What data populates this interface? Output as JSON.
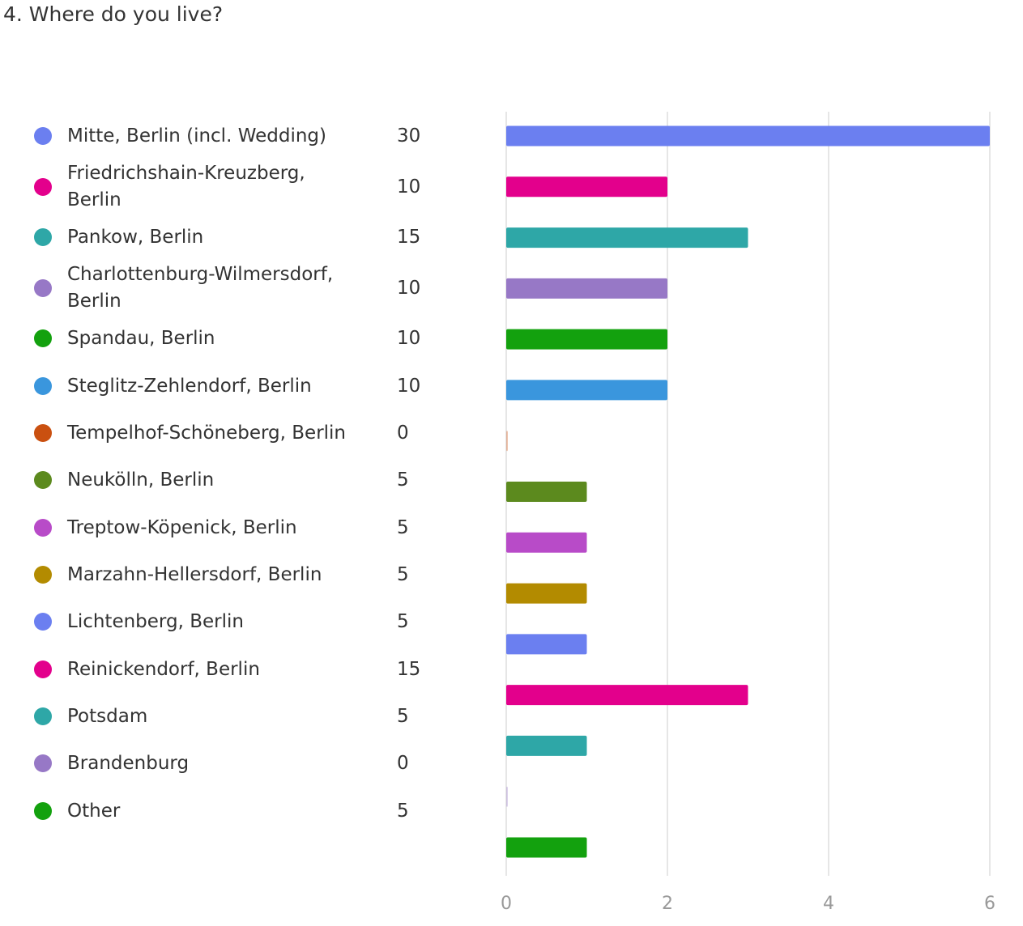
{
  "title": "4. Where do you live?",
  "chart_data": {
    "type": "bar",
    "orientation": "horizontal",
    "title": "4. Where do you live?",
    "xlim": [
      0,
      6
    ],
    "x_ticks": [
      0,
      2,
      4,
      6
    ],
    "grid": "vertical",
    "legend_position": "left",
    "items": [
      {
        "label": "Mitte, Berlin (incl. Wedding)",
        "count": "30",
        "value": 6,
        "color": "#6b7ff0"
      },
      {
        "label": "Friedrichshain-Kreuzberg, Berlin",
        "count": "10",
        "value": 2,
        "color": "#e3008c"
      },
      {
        "label": "Pankow, Berlin",
        "count": "15",
        "value": 3,
        "color": "#2ea7a7"
      },
      {
        "label": "Charlottenburg-Wilmersdorf, Berlin",
        "count": "10",
        "value": 2,
        "color": "#9778c6"
      },
      {
        "label": "Spandau, Berlin",
        "count": "10",
        "value": 2,
        "color": "#13a10e"
      },
      {
        "label": "Steglitz-Zehlendorf, Berlin",
        "count": "10",
        "value": 2,
        "color": "#3a96dd"
      },
      {
        "label": "Tempelhof-Schöneberg, Berlin",
        "count": "0",
        "value": 0,
        "color": "#ca5010"
      },
      {
        "label": "Neukölln, Berlin",
        "count": "5",
        "value": 1,
        "color": "#5c8a1e"
      },
      {
        "label": "Treptow-Köpenick, Berlin",
        "count": "5",
        "value": 1,
        "color": "#b84bc8"
      },
      {
        "label": "Marzahn-Hellersdorf, Berlin",
        "count": "5",
        "value": 1,
        "color": "#b38b00"
      },
      {
        "label": "Lichtenberg, Berlin",
        "count": "5",
        "value": 1,
        "color": "#6b7ff0"
      },
      {
        "label": "Reinickendorf, Berlin",
        "count": "15",
        "value": 3,
        "color": "#e3008c"
      },
      {
        "label": "Potsdam",
        "count": "5",
        "value": 1,
        "color": "#2ea7a7"
      },
      {
        "label": "Brandenburg",
        "count": "0",
        "value": 0,
        "color": "#9778c6"
      },
      {
        "label": "Other",
        "count": "5",
        "value": 1,
        "color": "#13a10e"
      }
    ]
  }
}
